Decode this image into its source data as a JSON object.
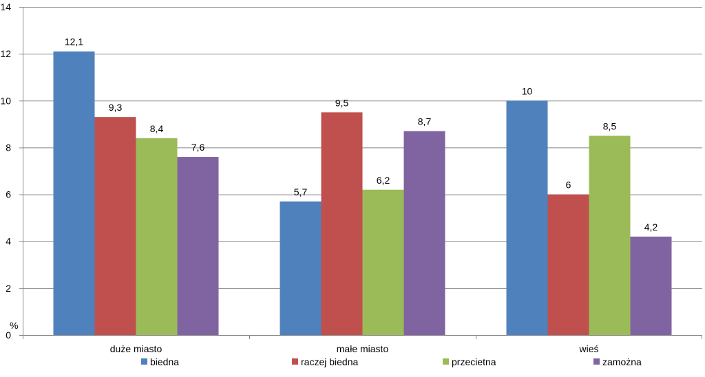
{
  "chart_data": {
    "type": "bar",
    "categories": [
      "duże miasto",
      "małe miasto",
      "wieś"
    ],
    "series": [
      {
        "name": "biedna",
        "values": [
          12.1,
          5.7,
          10
        ],
        "labels": [
          "12,1",
          "5,7",
          "10"
        ],
        "color": "#4F81BD"
      },
      {
        "name": "raczej biedna",
        "values": [
          9.3,
          9.5,
          6
        ],
        "labels": [
          "9,3",
          "9,5",
          "6"
        ],
        "color": "#C0504D"
      },
      {
        "name": "przecietna",
        "values": [
          8.4,
          6.2,
          8.5
        ],
        "labels": [
          "8,4",
          "6,2",
          "8,5"
        ],
        "color": "#9BBB59"
      },
      {
        "name": "zamożna",
        "values": [
          7.6,
          8.7,
          4.2
        ],
        "labels": [
          "7,6",
          "8,7",
          "4,2"
        ],
        "color": "#8064A2"
      }
    ],
    "ylim": [
      0,
      14
    ],
    "yticks": [
      0,
      2,
      4,
      6,
      8,
      10,
      12,
      14
    ],
    "ylabel": "%",
    "xlabel": "",
    "title": "",
    "grid": true,
    "legend_position": "bottom"
  }
}
